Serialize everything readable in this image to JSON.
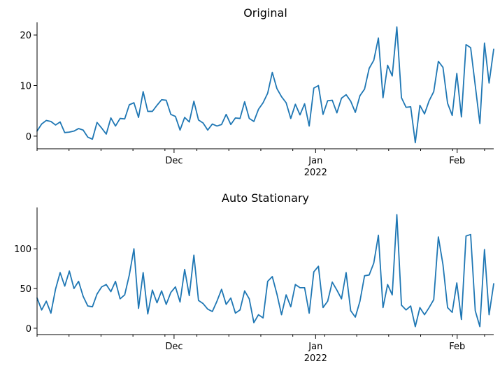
{
  "chart_data": [
    {
      "type": "line",
      "title": "Original",
      "xlabel": "",
      "ylabel": "",
      "x_start": "2021-11-01",
      "x_end": "2022-02-09",
      "xlim": [
        "2021-11-01",
        "2022-02-09"
      ],
      "ylim": [
        -2.5,
        22.5
      ],
      "x_ticks": [
        {
          "date": "2021-12-01",
          "label": "Dec",
          "sublabel": ""
        },
        {
          "date": "2022-01-01",
          "label": "Jan",
          "sublabel": "2022"
        },
        {
          "date": "2022-02-01",
          "label": "Feb",
          "sublabel": ""
        }
      ],
      "y_ticks": [
        0,
        10,
        20
      ],
      "grid": false,
      "series": [
        {
          "values": [
            1.0,
            2.4,
            3.1,
            2.9,
            2.2,
            2.8,
            0.7,
            0.8,
            1.0,
            1.5,
            1.2,
            -0.2,
            -0.6,
            2.7,
            1.6,
            0.4,
            3.6,
            2.0,
            3.5,
            3.4,
            6.2,
            6.6,
            3.7,
            8.8,
            4.9,
            4.9,
            6.1,
            7.2,
            7.1,
            4.3,
            3.9,
            1.2,
            3.7,
            2.8,
            6.9,
            3.2,
            2.6,
            1.2,
            2.4,
            2.0,
            2.3,
            4.3,
            2.3,
            3.6,
            3.5,
            6.8,
            3.5,
            2.9,
            5.3,
            6.6,
            8.5,
            12.6,
            9.4,
            7.8,
            6.6,
            3.5,
            6.3,
            4.2,
            6.4,
            2.0,
            9.5,
            10.0,
            4.3,
            7.0,
            7.1,
            4.6,
            7.5,
            8.2,
            6.9,
            4.7,
            8.0,
            9.3,
            13.4,
            15.0,
            19.4,
            7.6,
            14.0,
            11.9,
            21.6,
            7.6,
            5.7,
            5.8,
            -1.3,
            6.1,
            4.4,
            7.0,
            8.8,
            14.8,
            13.6,
            6.5,
            4.1,
            12.4,
            3.8,
            18.1,
            17.5,
            10.0,
            2.5,
            18.4,
            10.5,
            17.2
          ]
        }
      ]
    },
    {
      "type": "line",
      "title": "Auto Stationary",
      "xlabel": "",
      "ylabel": "",
      "x_start": "2021-11-01",
      "x_end": "2022-02-09",
      "xlim": [
        "2021-11-01",
        "2022-02-09"
      ],
      "ylim": [
        -8,
        152
      ],
      "x_ticks": [
        {
          "date": "2021-12-01",
          "label": "Dec",
          "sublabel": ""
        },
        {
          "date": "2022-01-01",
          "label": "Jan",
          "sublabel": "2022"
        },
        {
          "date": "2022-02-01",
          "label": "Feb",
          "sublabel": ""
        }
      ],
      "y_ticks": [
        0,
        50,
        100
      ],
      "grid": false,
      "series": [
        {
          "values": [
            38,
            23,
            34,
            19,
            49,
            70,
            53,
            72,
            50,
            59,
            40,
            28,
            27,
            43,
            52,
            55,
            46,
            59,
            37,
            42,
            67,
            100,
            25,
            70,
            18,
            48,
            32,
            47,
            30,
            45,
            52,
            33,
            74,
            41,
            92,
            35,
            31,
            24,
            21,
            34,
            49,
            30,
            38,
            19,
            23,
            47,
            37,
            7,
            17,
            13,
            59,
            65,
            43,
            17,
            42,
            27,
            55,
            51,
            51,
            19,
            71,
            78,
            26,
            34,
            58,
            48,
            37,
            70,
            22,
            14,
            34,
            66,
            67,
            82,
            117,
            26,
            55,
            42,
            143,
            29,
            23,
            28,
            2,
            26,
            17,
            26,
            36,
            115,
            80,
            26,
            20,
            57,
            11,
            116,
            118,
            22,
            2,
            99,
            17,
            56
          ]
        }
      ]
    }
  ]
}
